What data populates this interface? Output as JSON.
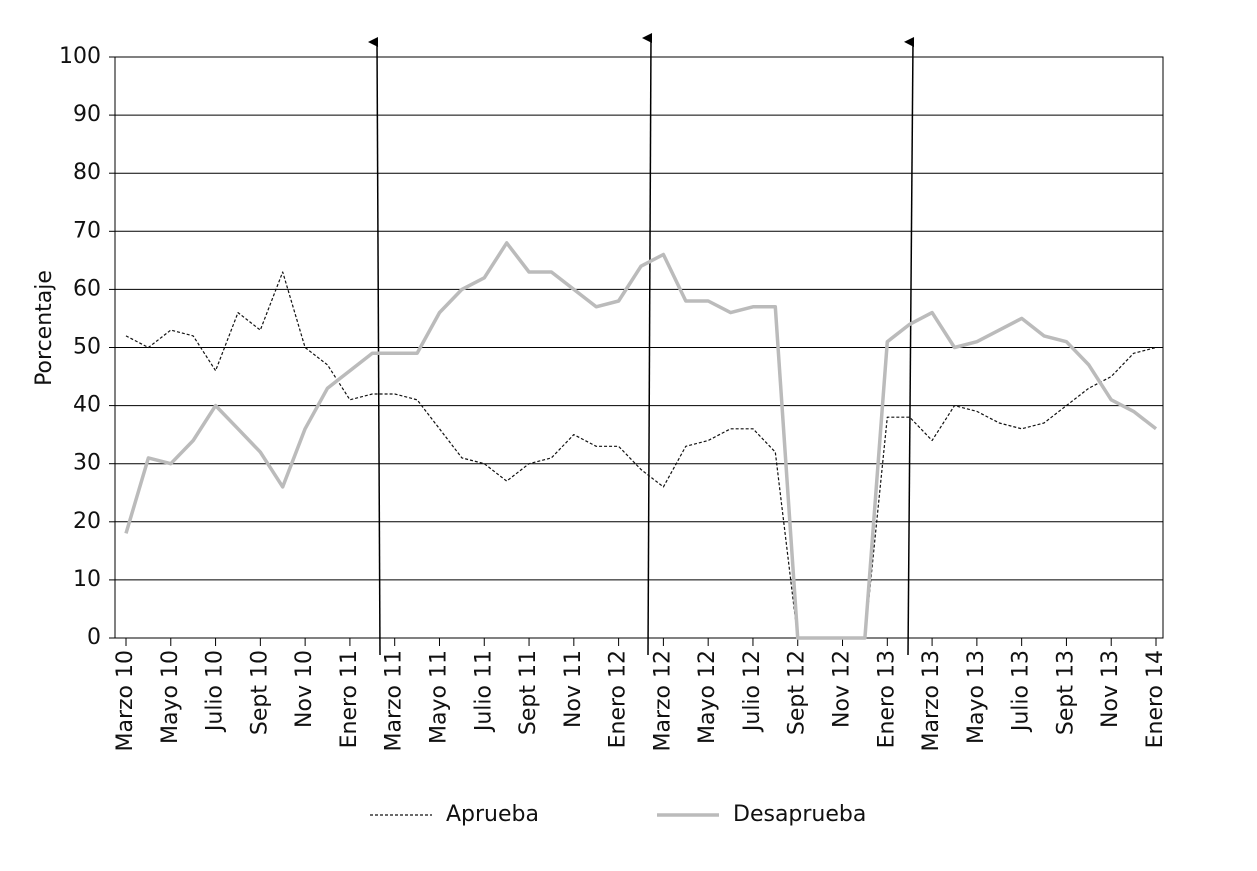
{
  "chart_data": {
    "type": "line",
    "y_label": "Porcentaje",
    "categories": [
      "Marzo 10",
      null,
      "Mayo 10",
      null,
      "Julio 10",
      null,
      "Sept 10",
      null,
      "Nov 10",
      null,
      "Enero 11",
      null,
      "Marzo 11",
      null,
      "Mayo 11",
      null,
      "Julio 11",
      null,
      "Sept 11",
      null,
      "Nov 11",
      null,
      "Enero 12",
      null,
      "Marzo 12",
      null,
      "Mayo 12",
      null,
      "Julio 12",
      null,
      "Sept 12",
      null,
      "Nov 12",
      null,
      "Enero 13",
      null,
      "Marzo 13",
      null,
      "Mayo 13",
      null,
      "Julio 13",
      null,
      "Sept 13",
      null,
      "Nov 13",
      null,
      "Enero 14"
    ],
    "series": [
      {
        "name": "Aprueba",
        "color": "#111111",
        "dashed": true,
        "values": [
          52,
          50,
          53,
          52,
          46,
          56,
          53,
          63,
          50,
          47,
          41,
          42,
          42,
          41,
          36,
          31,
          30,
          27,
          30,
          31,
          35,
          33,
          33,
          29,
          26,
          33,
          34,
          36,
          36,
          32,
          0,
          0,
          0,
          0,
          38,
          38,
          34,
          40,
          39,
          37,
          36,
          37,
          40,
          43,
          45,
          49,
          50
        ]
      },
      {
        "name": "Desaprueba",
        "color": "#bbbbbb",
        "dashed": false,
        "values": [
          18,
          31,
          30,
          34,
          40,
          36,
          32,
          26,
          36,
          43,
          46,
          49,
          49,
          49,
          56,
          60,
          62,
          68,
          63,
          63,
          60,
          57,
          58,
          64,
          66,
          58,
          58,
          56,
          57,
          57,
          0,
          0,
          0,
          0,
          51,
          54,
          56,
          50,
          51,
          53,
          55,
          52,
          51,
          47,
          41,
          39,
          36
        ]
      }
    ],
    "ylim": [
      0,
      100
    ],
    "yticks": [
      0,
      10,
      20,
      30,
      40,
      50,
      60,
      70,
      80,
      90,
      100
    ],
    "grid": true
  }
}
